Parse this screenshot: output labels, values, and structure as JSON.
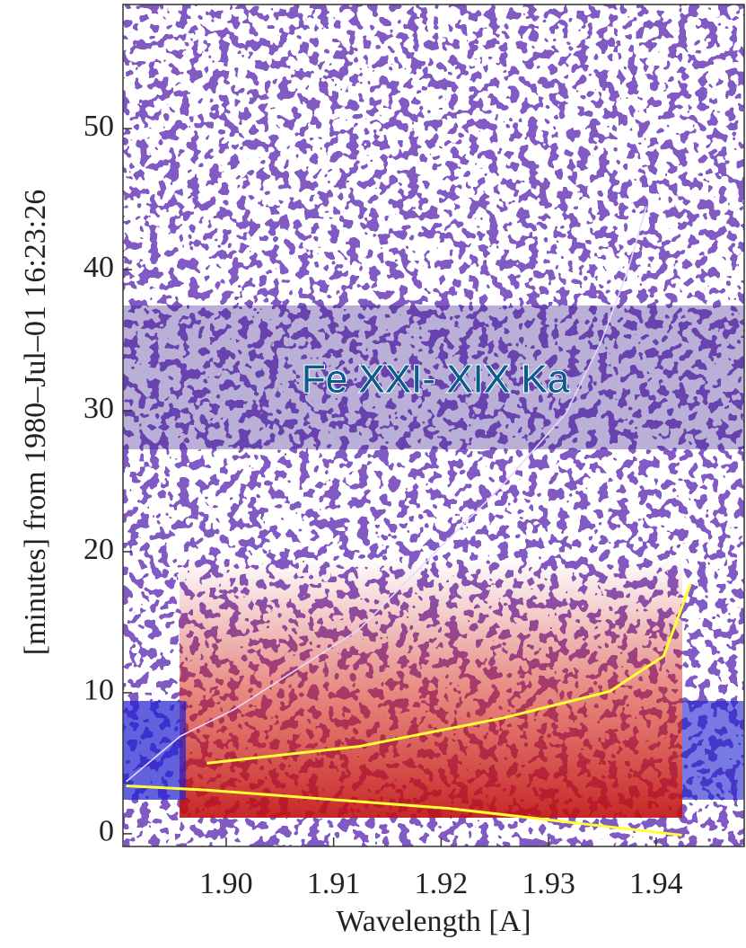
{
  "chart_data": {
    "type": "line",
    "annotation": "Fe XXI- XIX Ka",
    "x_label": "Wavelength [A]",
    "y_label": "[minutes] from 1980–Jul–01 16:23:26",
    "xlim": [
      1.8904,
      1.9482
    ],
    "ylim": [
      -0.9,
      58.8
    ],
    "xticks": [
      {
        "value": 1.9,
        "label": "1.90"
      },
      {
        "value": 1.91,
        "label": "1.91"
      },
      {
        "value": 1.92,
        "label": "1.92"
      },
      {
        "value": 1.93,
        "label": "1.93"
      },
      {
        "value": 1.94,
        "label": "1.94"
      }
    ],
    "yticks": [
      0,
      10,
      20,
      30,
      40,
      50
    ],
    "series": [
      {
        "color": "#e8d8ff",
        "x": [
          1.8907,
          1.8957,
          1.9007,
          1.9124,
          1.919,
          1.9257,
          1.9316,
          1.9349,
          1.9374,
          1.9391
        ],
        "values": [
          3.7,
          6.9,
          8.8,
          14.5,
          19.6,
          24.7,
          29.8,
          34.9,
          40.0,
          44.5
        ]
      },
      {
        "color": "#ffff33",
        "x": [
          1.8907,
          1.8982,
          1.9207,
          1.9424,
          null,
          1.8982,
          1.9124,
          1.9257,
          1.9357,
          1.9407,
          1.9432
        ],
        "values": [
          3.4,
          3.1,
          1.8,
          -0.1,
          null,
          5.0,
          6.2,
          8.2,
          10.1,
          12.6,
          17.7
        ]
      }
    ]
  }
}
